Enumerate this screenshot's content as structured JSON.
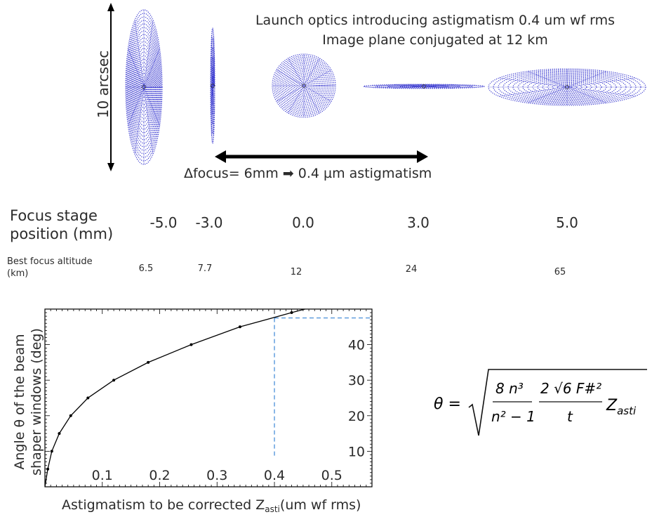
{
  "top_panel": {
    "scale_label": "10 arcsec",
    "title_line1": "Launch optics introducing astigmatism 0.4 um wf rms",
    "title_line2": "Image plane conjugated at 12 km",
    "delta_focus_caption": "Δfocus= 6mm ➡ 0.4 µm astigmatism",
    "spot_color": "#2b2bcc"
  },
  "focus_table": {
    "stage_label": "Focus stage position (mm)",
    "stage_values": [
      "-5.0",
      "-3.0",
      "0.0",
      "3.0",
      "5.0"
    ],
    "altitude_label": "Best focus altitude (km)",
    "altitude_values": [
      "6.5",
      "7.7",
      "12",
      "24",
      "65"
    ]
  },
  "chart_data": {
    "type": "line",
    "xlabel": "Astigmatism to be corrected Z_asti(um wf rms)",
    "ylabel": "Angle θ of the beam shaper windows (deg)",
    "xlim": [
      0,
      0.57
    ],
    "ylim": [
      0,
      50
    ],
    "x_ticks": [
      "0.1",
      "0.2",
      "0.3",
      "0.4",
      "0.5"
    ],
    "y_ticks": [
      "10",
      "20",
      "30",
      "40"
    ],
    "series": [
      {
        "x": [
          0.0,
          0.005,
          0.012,
          0.025,
          0.045,
          0.075,
          0.12,
          0.18,
          0.255,
          0.34,
          0.43,
          0.57
        ],
        "y": [
          0.0,
          5.0,
          10.0,
          15.0,
          20.0,
          25.0,
          30.0,
          35.0,
          40.0,
          45.0,
          49.0,
          55.0
        ]
      }
    ],
    "guide_point": {
      "x": 0.4,
      "y": 47.5
    },
    "guide_color": "#4a90d9"
  },
  "formula": {
    "lhs": "θ =",
    "numerator1": "8 n³",
    "denominator1": "n² − 1",
    "numerator2": "2 √6 F#²",
    "denominator2": "t",
    "trailing": "Z",
    "trailing_sub": "asti"
  }
}
